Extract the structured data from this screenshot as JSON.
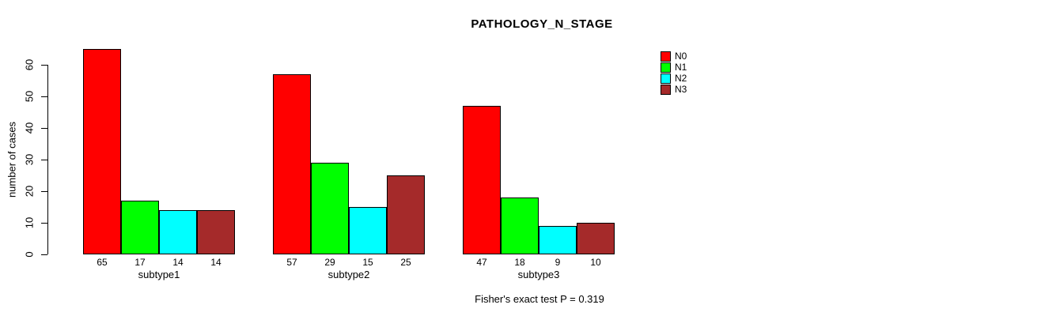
{
  "chart": {
    "title": "PATHOLOGY_N_STAGE",
    "ylabel": "number of cases",
    "footer": "Fisher's exact test P = 0.319"
  },
  "chart_data": {
    "type": "bar",
    "title": "PATHOLOGY_N_STAGE",
    "xlabel": "",
    "ylabel": "number of cases",
    "categories": [
      "subtype1",
      "subtype2",
      "subtype3"
    ],
    "series": [
      {
        "name": "N0",
        "color": "#FF0000",
        "values": [
          65,
          57,
          47
        ]
      },
      {
        "name": "N1",
        "color": "#00FF00",
        "values": [
          17,
          29,
          18
        ]
      },
      {
        "name": "N2",
        "color": "#00FFFF",
        "values": [
          14,
          15,
          9
        ]
      },
      {
        "name": "N3",
        "color": "#A52A2A",
        "values": [
          14,
          25,
          10
        ]
      }
    ],
    "bar_value_labels": [
      [
        65,
        17,
        14,
        14
      ],
      [
        57,
        29,
        15,
        25
      ],
      [
        47,
        18,
        9,
        10
      ]
    ],
    "yticks": [
      0,
      10,
      20,
      30,
      40,
      50,
      60
    ],
    "ylim": [
      0,
      65
    ],
    "grid": false,
    "legend_position": "top-right",
    "annotation": "Fisher's exact test P = 0.319"
  }
}
